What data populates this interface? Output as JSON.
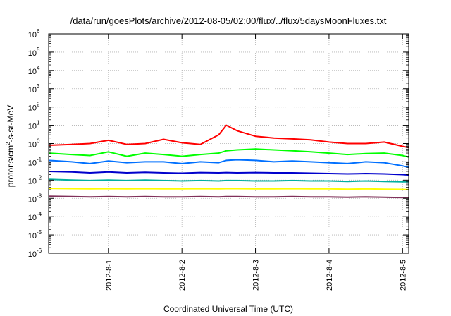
{
  "chart_data": {
    "type": "line",
    "title": "/data/run/goesPlots/archive/2012-08-05/02:00/flux/../flux/5daysMoonFluxes.txt",
    "xlabel": "Coordinated Universal Time (UTC)",
    "ylabel": "protons/cm²-s-sr-MeV",
    "ylabel_parts": [
      "protons/cm",
      "2",
      "-s-sr-MeV"
    ],
    "yscale": "log",
    "ylim": [
      1e-06,
      1000000
    ],
    "yticks": [
      {
        "value": 1e-06,
        "exp": "-6"
      },
      {
        "value": 1e-05,
        "exp": "-5"
      },
      {
        "value": 0.0001,
        "exp": "-4"
      },
      {
        "value": 0.001,
        "exp": "-3"
      },
      {
        "value": 0.01,
        "exp": "-2"
      },
      {
        "value": 0.1,
        "exp": "-1"
      },
      {
        "value": 1,
        "exp": "0"
      },
      {
        "value": 10,
        "exp": "1"
      },
      {
        "value": 100,
        "exp": "2"
      },
      {
        "value": 1000,
        "exp": "3"
      },
      {
        "value": 10000,
        "exp": "4"
      },
      {
        "value": 100000,
        "exp": "5"
      },
      {
        "value": 1000000,
        "exp": "6"
      }
    ],
    "ytick_base": "10",
    "xlim": [
      "2012-07-31 04:30",
      "2012-08-05 02:00"
    ],
    "xticks": [
      "2012-8-1",
      "2012-8-2",
      "2012-8-3",
      "2012-8-4",
      "2012-8-5"
    ],
    "grid": true,
    "legend": "none",
    "x": [
      "2012-07-31 04:30",
      "2012-07-31 12:00",
      "2012-07-31 18:00",
      "2012-08-01 00:00",
      "2012-08-01 06:00",
      "2012-08-01 12:00",
      "2012-08-01 18:00",
      "2012-08-02 00:00",
      "2012-08-02 06:00",
      "2012-08-02 12:00",
      "2012-08-02 14:30",
      "2012-08-02 18:00",
      "2012-08-03 00:00",
      "2012-08-03 06:00",
      "2012-08-03 12:00",
      "2012-08-03 18:00",
      "2012-08-04 00:00",
      "2012-08-04 06:00",
      "2012-08-04 12:00",
      "2012-08-04 18:00",
      "2012-08-05 00:00",
      "2012-08-05 02:00"
    ],
    "series": [
      {
        "color": "#ff0000",
        "values": [
          0.8,
          0.9,
          1.0,
          1.5,
          0.9,
          1.0,
          1.7,
          1.1,
          0.9,
          3.0,
          10.0,
          5.0,
          2.5,
          2.0,
          1.8,
          1.6,
          1.2,
          1.0,
          1.0,
          1.2,
          0.7,
          0.6
        ]
      },
      {
        "color": "#00ff00",
        "values": [
          0.3,
          0.25,
          0.22,
          0.35,
          0.2,
          0.3,
          0.25,
          0.2,
          0.25,
          0.3,
          0.4,
          0.45,
          0.5,
          0.45,
          0.4,
          0.35,
          0.3,
          0.25,
          0.28,
          0.3,
          0.22,
          0.18
        ]
      },
      {
        "color": "#0070ff",
        "values": [
          0.12,
          0.1,
          0.08,
          0.11,
          0.09,
          0.1,
          0.1,
          0.08,
          0.1,
          0.09,
          0.12,
          0.13,
          0.12,
          0.1,
          0.11,
          0.1,
          0.09,
          0.08,
          0.1,
          0.09,
          0.06,
          0.05
        ]
      },
      {
        "color": "#0000cc",
        "values": [
          0.03,
          0.028,
          0.025,
          0.028,
          0.025,
          0.027,
          0.025,
          0.024,
          0.026,
          0.025,
          0.026,
          0.025,
          0.026,
          0.025,
          0.025,
          0.024,
          0.023,
          0.022,
          0.023,
          0.022,
          0.02,
          0.019
        ]
      },
      {
        "color": "#00b0a0",
        "values": [
          0.011,
          0.01,
          0.0095,
          0.01,
          0.0095,
          0.01,
          0.0095,
          0.009,
          0.0095,
          0.009,
          0.0095,
          0.0095,
          0.009,
          0.009,
          0.0095,
          0.009,
          0.009,
          0.0085,
          0.009,
          0.0085,
          0.008,
          0.008
        ]
      },
      {
        "color": "#ffff00",
        "values": [
          0.0035,
          0.0034,
          0.0033,
          0.0034,
          0.0033,
          0.0034,
          0.0033,
          0.0033,
          0.0034,
          0.0033,
          0.0034,
          0.0034,
          0.0033,
          0.0033,
          0.0034,
          0.0033,
          0.0033,
          0.0032,
          0.0033,
          0.0032,
          0.0031,
          0.003
        ]
      },
      {
        "color": "#80305a",
        "values": [
          0.0013,
          0.00125,
          0.0012,
          0.00125,
          0.0012,
          0.00125,
          0.0012,
          0.0012,
          0.00125,
          0.0012,
          0.00125,
          0.00125,
          0.0012,
          0.0012,
          0.00125,
          0.0012,
          0.0012,
          0.00115,
          0.0012,
          0.00115,
          0.0011,
          0.0011
        ]
      }
    ]
  }
}
